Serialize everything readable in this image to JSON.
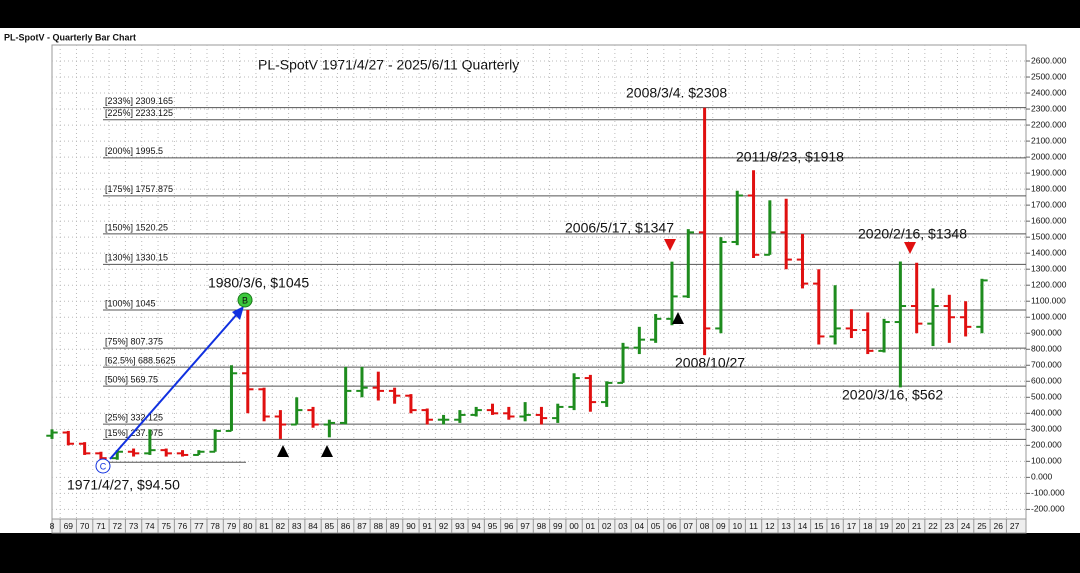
{
  "chart_data": {
    "type": "ohlc",
    "window_title": "PL-SpotV - Quarterly Bar Chart",
    "title": "PL-SpotV 1971/4/27 - 2025/6/11 Quarterly",
    "up_color": "#1e8c1e",
    "down_color": "#e01010",
    "grid": true,
    "x": [
      1968,
      1969,
      1970,
      1971,
      1972,
      1973,
      1974,
      1975,
      1976,
      1977,
      1978,
      1979,
      1980,
      1981,
      1982,
      1983,
      1984,
      1985,
      1986,
      1987,
      1988,
      1989,
      1990,
      1991,
      1992,
      1993,
      1994,
      1995,
      1996,
      1997,
      1998,
      1999,
      2000,
      2001,
      2002,
      2003,
      2004,
      2005,
      2006,
      2007,
      2008,
      2009,
      2010,
      2011,
      2012,
      2013,
      2014,
      2015,
      2016,
      2017,
      2018,
      2019,
      2020,
      2021,
      2022,
      2023,
      2024,
      2025
    ],
    "open": [
      260,
      280,
      210,
      150,
      120,
      160,
      150,
      170,
      150,
      140,
      160,
      290,
      650,
      550,
      380,
      330,
      420,
      330,
      340,
      540,
      560,
      540,
      510,
      420,
      360,
      360,
      390,
      420,
      400,
      380,
      390,
      370,
      440,
      620,
      470,
      590,
      810,
      860,
      990,
      1130,
      1530,
      930,
      1470,
      1760,
      1390,
      1530,
      1360,
      1210,
      880,
      930,
      920,
      790,
      970,
      1070,
      960,
      1070,
      1000,
      940
    ],
    "high": [
      300,
      290,
      220,
      160,
      170,
      180,
      300,
      180,
      170,
      170,
      300,
      700,
      1045,
      560,
      420,
      500,
      440,
      360,
      690,
      690,
      660,
      560,
      520,
      430,
      390,
      420,
      440,
      460,
      440,
      470,
      440,
      460,
      650,
      640,
      600,
      840,
      940,
      1020,
      1347,
      1550,
      2308,
      1500,
      1790,
      1918,
      1730,
      1740,
      1520,
      1300,
      1200,
      1050,
      1030,
      990,
      1348,
      1340,
      1180,
      1140,
      1100,
      1240
    ],
    "low": [
      240,
      200,
      140,
      95,
      110,
      130,
      140,
      130,
      130,
      140,
      160,
      290,
      400,
      350,
      240,
      330,
      310,
      250,
      330,
      500,
      480,
      460,
      400,
      330,
      330,
      340,
      380,
      390,
      360,
      350,
      330,
      340,
      420,
      410,
      440,
      590,
      770,
      840,
      950,
      1120,
      763,
      900,
      1450,
      1370,
      1390,
      1300,
      1180,
      830,
      830,
      870,
      770,
      780,
      562,
      900,
      820,
      840,
      880,
      900
    ],
    "close": [
      280,
      210,
      150,
      120,
      160,
      150,
      170,
      150,
      140,
      160,
      290,
      650,
      550,
      380,
      330,
      420,
      330,
      340,
      540,
      560,
      540,
      510,
      420,
      360,
      360,
      390,
      420,
      400,
      380,
      390,
      370,
      440,
      620,
      470,
      590,
      810,
      860,
      990,
      1130,
      1530,
      930,
      1470,
      1760,
      1390,
      1530,
      1360,
      1210,
      880,
      930,
      920,
      790,
      970,
      1070,
      960,
      1070,
      1000,
      940,
      1230
    ],
    "xlim": [
      1968.5,
      2028.2
    ],
    "ylim": [
      -260,
      2700
    ],
    "xticks": [
      {
        "value": 1968,
        "label": "8"
      },
      {
        "value": 1969,
        "label": "69"
      },
      {
        "value": 1970,
        "label": "70"
      },
      {
        "value": 1971,
        "label": "71"
      },
      {
        "value": 1972,
        "label": "72"
      },
      {
        "value": 1973,
        "label": "73"
      },
      {
        "value": 1974,
        "label": "74"
      },
      {
        "value": 1975,
        "label": "75"
      },
      {
        "value": 1976,
        "label": "76"
      },
      {
        "value": 1977,
        "label": "77"
      },
      {
        "value": 1978,
        "label": "78"
      },
      {
        "value": 1979,
        "label": "79"
      },
      {
        "value": 1980,
        "label": "80"
      },
      {
        "value": 1981,
        "label": "81"
      },
      {
        "value": 1982,
        "label": "82"
      },
      {
        "value": 1983,
        "label": "83"
      },
      {
        "value": 1984,
        "label": "84"
      },
      {
        "value": 1985,
        "label": "85"
      },
      {
        "value": 1986,
        "label": "86"
      },
      {
        "value": 1987,
        "label": "87"
      },
      {
        "value": 1988,
        "label": "88"
      },
      {
        "value": 1989,
        "label": "89"
      },
      {
        "value": 1990,
        "label": "90"
      },
      {
        "value": 1991,
        "label": "91"
      },
      {
        "value": 1992,
        "label": "92"
      },
      {
        "value": 1993,
        "label": "93"
      },
      {
        "value": 1994,
        "label": "94"
      },
      {
        "value": 1995,
        "label": "95"
      },
      {
        "value": 1996,
        "label": "96"
      },
      {
        "value": 1997,
        "label": "97"
      },
      {
        "value": 1998,
        "label": "98"
      },
      {
        "value": 1999,
        "label": "99"
      },
      {
        "value": 2000,
        "label": "00"
      },
      {
        "value": 2001,
        "label": "01"
      },
      {
        "value": 2002,
        "label": "02"
      },
      {
        "value": 2003,
        "label": "03"
      },
      {
        "value": 2004,
        "label": "04"
      },
      {
        "value": 2005,
        "label": "05"
      },
      {
        "value": 2006,
        "label": "06"
      },
      {
        "value": 2007,
        "label": "07"
      },
      {
        "value": 2008,
        "label": "08"
      },
      {
        "value": 2009,
        "label": "09"
      },
      {
        "value": 2010,
        "label": "10"
      },
      {
        "value": 2011,
        "label": "11"
      },
      {
        "value": 2012,
        "label": "12"
      },
      {
        "value": 2013,
        "label": "13"
      },
      {
        "value": 2014,
        "label": "14"
      },
      {
        "value": 2015,
        "label": "15"
      },
      {
        "value": 2016,
        "label": "16"
      },
      {
        "value": 2017,
        "label": "17"
      },
      {
        "value": 2018,
        "label": "18"
      },
      {
        "value": 2019,
        "label": "19"
      },
      {
        "value": 2020,
        "label": "20"
      },
      {
        "value": 2021,
        "label": "21"
      },
      {
        "value": 2022,
        "label": "22"
      },
      {
        "value": 2023,
        "label": "23"
      },
      {
        "value": 2024,
        "label": "24"
      },
      {
        "value": 2025,
        "label": "25"
      },
      {
        "value": 2026,
        "label": "26"
      },
      {
        "value": 2027,
        "label": "27"
      }
    ],
    "yticks": [
      {
        "value": 2600,
        "label": "2600.000"
      },
      {
        "value": 2500,
        "label": "2500.000"
      },
      {
        "value": 2400,
        "label": "2400.000"
      },
      {
        "value": 2300,
        "label": "2300.000"
      },
      {
        "value": 2200,
        "label": "2200.000"
      },
      {
        "value": 2100,
        "label": "2100.000"
      },
      {
        "value": 2000,
        "label": "2000.000"
      },
      {
        "value": 1900,
        "label": "1900.000"
      },
      {
        "value": 1800,
        "label": "1800.000"
      },
      {
        "value": 1700,
        "label": "1700.000"
      },
      {
        "value": 1600,
        "label": "1600.000"
      },
      {
        "value": 1500,
        "label": "1500.000"
      },
      {
        "value": 1400,
        "label": "1400.000"
      },
      {
        "value": 1300,
        "label": "1300.000"
      },
      {
        "value": 1200,
        "label": "1200.000"
      },
      {
        "value": 1100,
        "label": "1100.000"
      },
      {
        "value": 1000,
        "label": "1000.000"
      },
      {
        "value": 900,
        "label": "900.000"
      },
      {
        "value": 800,
        "label": "800.000"
      },
      {
        "value": 700,
        "label": "700.000"
      },
      {
        "value": 600,
        "label": "600.000"
      },
      {
        "value": 500,
        "label": "500.000"
      },
      {
        "value": 400,
        "label": "400.000"
      },
      {
        "value": 300,
        "label": "300.000"
      },
      {
        "value": 200,
        "label": "200.000"
      },
      {
        "value": 100,
        "label": "100.000"
      },
      {
        "value": 0,
        "label": "0.000"
      },
      {
        "value": -100,
        "label": "-100.000"
      },
      {
        "value": -200,
        "label": "-200.000"
      }
    ],
    "fib_base": 94.5,
    "fib_levels": [
      {
        "value": 2309.165,
        "label": "[233%] 2309.165"
      },
      {
        "value": 2233.125,
        "label": "[225%] 2233.125"
      },
      {
        "value": 1995.5,
        "label": "[200%] 1995.5"
      },
      {
        "value": 1757.875,
        "label": "[175%] 1757.875"
      },
      {
        "value": 1520.25,
        "label": "[150%] 1520.25"
      },
      {
        "value": 1330.15,
        "label": "[130%] 1330.15"
      },
      {
        "value": 1045,
        "label": "[100%] 1045"
      },
      {
        "value": 807.375,
        "label": "[75%] 807.375"
      },
      {
        "value": 688.5625,
        "label": "[62.5%] 688.5625"
      },
      {
        "value": 569.75,
        "label": "[50%] 569.75"
      },
      {
        "value": 332.125,
        "label": "[25%] 332.125"
      },
      {
        "value": 237.075,
        "label": "[15%] 237.075"
      }
    ],
    "annotations": [
      "2008/3/4. $2308",
      "2011/8/23, $1918",
      "2006/5/17, $1347",
      "2020/2/16, $1348",
      "1980/3/6, $1045",
      "2008/10/27",
      "2020/3/16, $562",
      "1971/4/27, $94.50"
    ],
    "point_labels": [
      "B",
      "C"
    ]
  }
}
